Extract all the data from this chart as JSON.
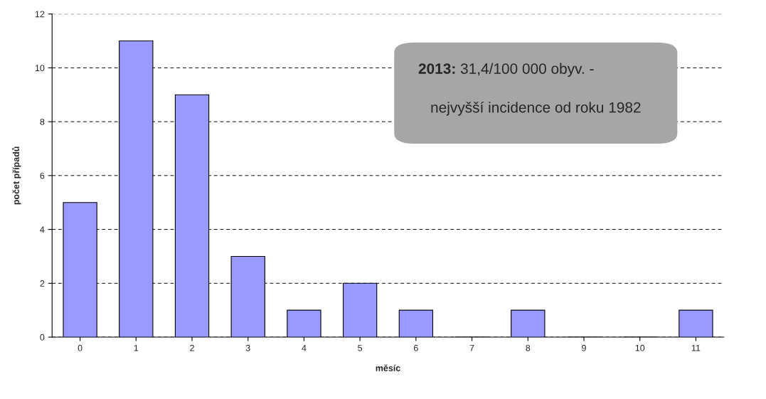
{
  "chart_data": {
    "type": "bar",
    "xlabel": "měsíc",
    "ylabel": "počet případů",
    "categories": [
      "0",
      "1",
      "2",
      "3",
      "4",
      "5",
      "6",
      "7",
      "8",
      "9",
      "10",
      "11"
    ],
    "values": [
      5,
      11,
      9,
      3,
      1,
      2,
      1,
      0,
      1,
      0,
      0,
      1
    ],
    "color": "#9999ff",
    "ylim": [
      0,
      12
    ],
    "yticks": [
      0,
      2,
      4,
      6,
      8,
      10,
      12
    ],
    "grid": "y",
    "legend": false,
    "annotations": [
      "2013:",
      "31,4/100 000 obyv. - nejvyšší incidence od roku 1982"
    ]
  }
}
